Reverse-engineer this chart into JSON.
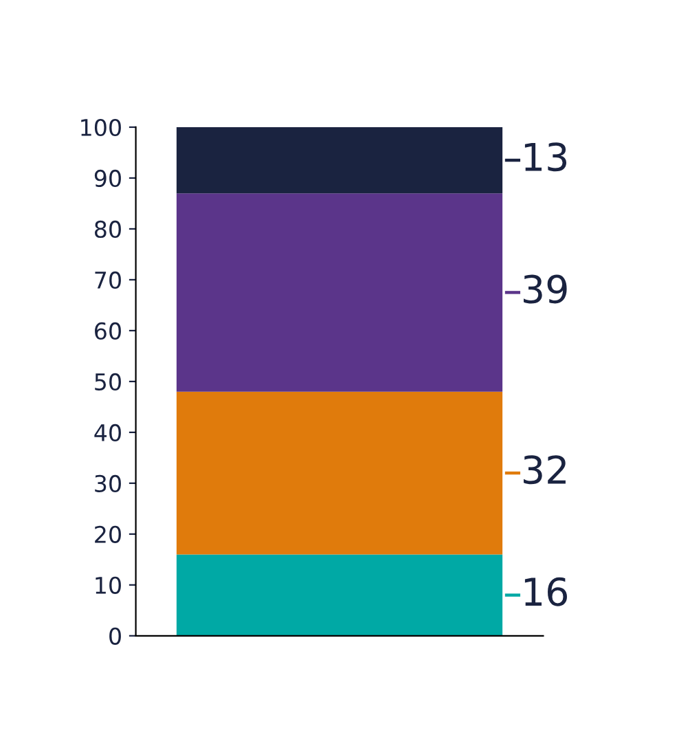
{
  "chart_data": {
    "type": "bar",
    "stacked": true,
    "categories": [
      null
    ],
    "series": [
      {
        "color": "#00a9a5",
        "values": [
          16
        ]
      },
      {
        "color": "#e07b0c",
        "values": [
          32
        ]
      },
      {
        "color": "#5b358a",
        "values": [
          39
        ]
      },
      {
        "color": "#1a2340",
        "values": [
          13
        ]
      }
    ],
    "ylim": [
      0,
      100
    ],
    "yticks": [
      0,
      10,
      20,
      30,
      40,
      50,
      60,
      70,
      80,
      90,
      100
    ],
    "grid": false,
    "legend": false,
    "data_labels": true
  }
}
